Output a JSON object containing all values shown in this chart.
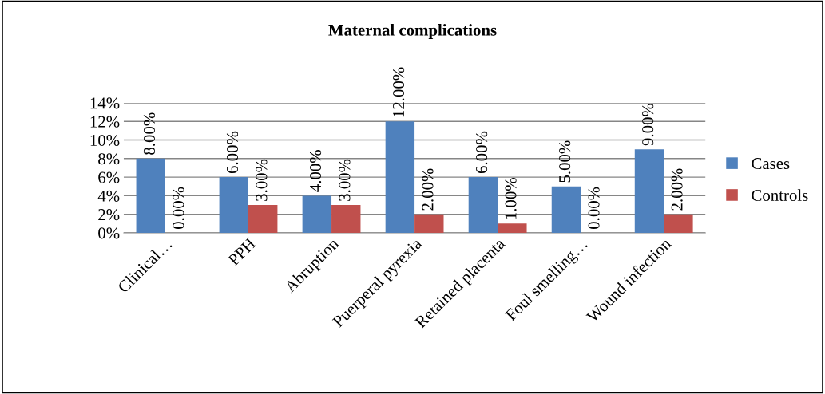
{
  "chart_data": {
    "type": "bar",
    "title": "Maternal complications",
    "categories": [
      "Clinical…",
      "PPH",
      "Abruption",
      "Puerperal pyrexia",
      "Retained placenta",
      "Foul smelling…",
      "Wound infection"
    ],
    "series": [
      {
        "name": "Cases",
        "color": "#4f81bd",
        "values": [
          8,
          6,
          4,
          12,
          6,
          5,
          9
        ],
        "value_labels": [
          "8.00%",
          "6.00%",
          "4.00%",
          "12.00%",
          "6.00%",
          "5.00%",
          "9.00%"
        ]
      },
      {
        "name": "Controls",
        "color": "#c0504d",
        "values": [
          0,
          3,
          3,
          2,
          1,
          0,
          2
        ],
        "value_labels": [
          "0.00%",
          "3.00%",
          "3.00%",
          "2.00%",
          "1.00%",
          "0.00%",
          "2.00%"
        ]
      }
    ],
    "ylim": [
      0,
      14
    ],
    "yticks": [
      {
        "value": 0,
        "label": "0%"
      },
      {
        "value": 2,
        "label": "2%"
      },
      {
        "value": 4,
        "label": "4%"
      },
      {
        "value": 6,
        "label": "6%"
      },
      {
        "value": 8,
        "label": "8%"
      },
      {
        "value": 10,
        "label": "10%"
      },
      {
        "value": 12,
        "label": "12%"
      },
      {
        "value": 14,
        "label": "14%"
      }
    ],
    "grid": "y",
    "legend": "right"
  }
}
